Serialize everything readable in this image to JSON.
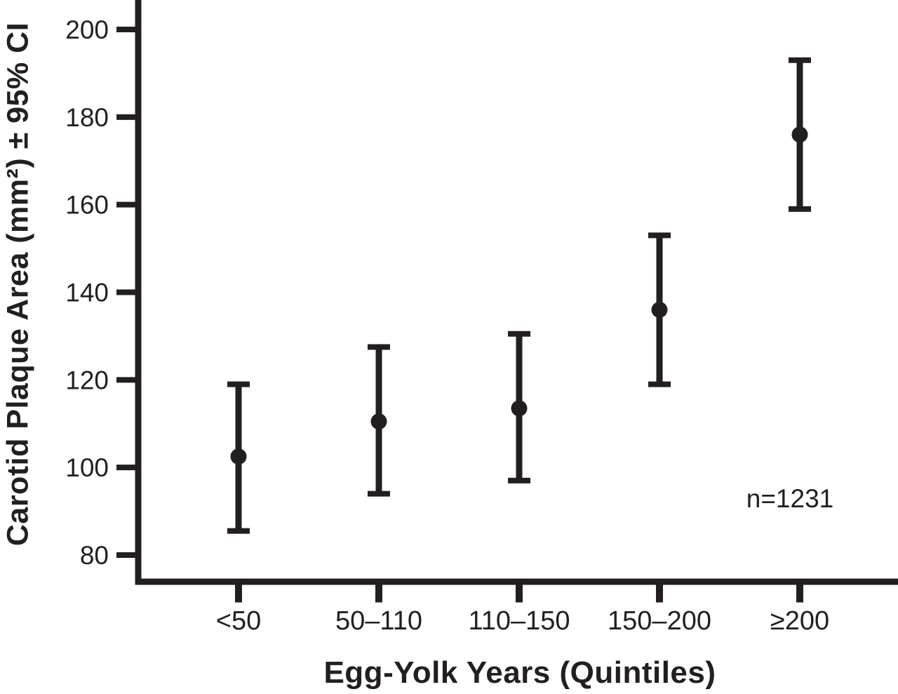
{
  "figure": {
    "background": "#ffffff",
    "ink_color": "#231f20"
  },
  "chart_data": {
    "type": "scatter",
    "subtype": "point-estimate-with-error-bars",
    "title": "",
    "xlabel": "Egg-Yolk Years (Quintiles)",
    "ylabel": "Carotid Plaque Area (mm²) ± 95% CI",
    "categories": [
      "<50",
      "50–110",
      "110–150",
      "150–200",
      "≥200"
    ],
    "series": [
      {
        "name": "Carotid plaque area (mm²)",
        "values": [
          102.5,
          110.5,
          113.5,
          136,
          176
        ],
        "ci_low": [
          85.5,
          94,
          97,
          119,
          159
        ],
        "ci_high": [
          119,
          127.5,
          130.5,
          153,
          193
        ]
      }
    ],
    "yticks": [
      80,
      100,
      120,
      140,
      160,
      180,
      200
    ],
    "ylim": [
      73,
      207
    ],
    "grid": false,
    "legend_position": "none",
    "annotation": "n=1231"
  }
}
